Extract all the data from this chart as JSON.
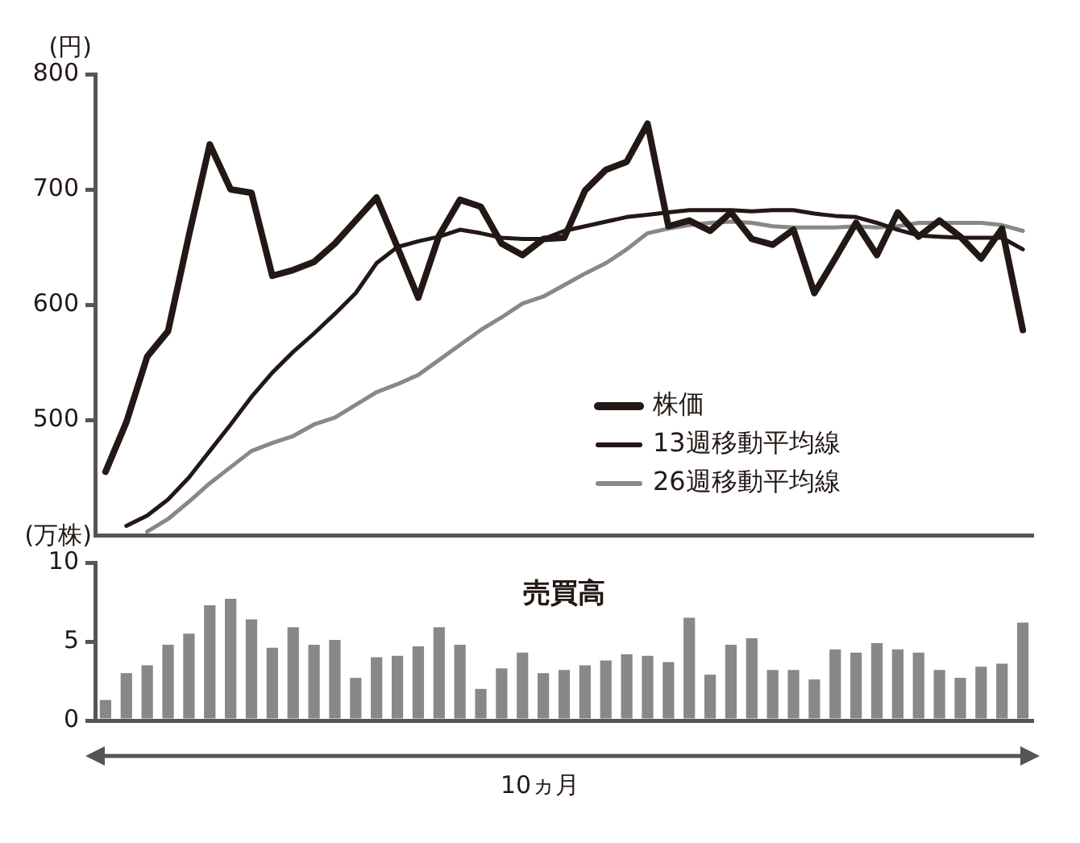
{
  "chart_data": [
    {
      "type": "line",
      "ylabel": "(円)",
      "categories": [
        null,
        null,
        null,
        null,
        null,
        null,
        null,
        null,
        null,
        null,
        null,
        null,
        null,
        null,
        null,
        null,
        null,
        null,
        null,
        null,
        null,
        null,
        null,
        null,
        null,
        null,
        null,
        null,
        null,
        null,
        null,
        null,
        null,
        null,
        null,
        null,
        null,
        null,
        null,
        null,
        null,
        null,
        null,
        null,
        null
      ],
      "series": [
        {
          "name": "株価",
          "color": "#231815",
          "values": [
            455,
            498,
            555,
            577,
            660,
            739,
            700,
            697,
            625,
            630,
            637,
            653,
            673,
            693,
            650,
            606,
            660,
            691,
            685,
            653,
            643,
            657,
            658,
            699,
            717,
            724,
            757,
            668,
            673,
            664,
            680,
            657,
            652,
            665,
            610,
            640,
            671,
            643,
            680,
            659,
            673,
            659,
            640,
            666,
            578
          ]
        },
        {
          "name": "13週移動平均線",
          "color": "#231815",
          "values": [
            null,
            408,
            417,
            431,
            450,
            473,
            496,
            520,
            541,
            559,
            575,
            592,
            610,
            636,
            650,
            655,
            659,
            665,
            662,
            658,
            657,
            657,
            664,
            668,
            672,
            676,
            678,
            680,
            682,
            682,
            682,
            681,
            682,
            682,
            679,
            677,
            676,
            671,
            665,
            660,
            659,
            658,
            658,
            658,
            648
          ]
        },
        {
          "name": "26週移動平均線",
          "color": "#888888",
          "values": [
            null,
            null,
            403,
            414,
            429,
            445,
            459,
            473,
            480,
            486,
            496,
            502,
            513,
            524,
            531,
            539,
            552,
            565,
            578,
            589,
            601,
            607,
            617,
            627,
            636,
            648,
            662,
            666,
            669,
            671,
            672,
            671,
            668,
            667,
            667,
            667,
            668,
            667,
            668,
            671,
            671,
            671,
            671,
            669,
            664
          ]
        }
      ],
      "ylim": [
        400,
        800
      ],
      "yticks": [
        500,
        600,
        700,
        800
      ],
      "legend": "bottom right",
      "tick_labels": "y",
      "marker": "none",
      "line_style": "solid"
    },
    {
      "type": "bar",
      "title": "売買高",
      "ylabel": "(万株)",
      "xlabel": "10ヵ月",
      "categories": [
        null,
        null,
        null,
        null,
        null,
        null,
        null,
        null,
        null,
        null,
        null,
        null,
        null,
        null,
        null,
        null,
        null,
        null,
        null,
        null,
        null,
        null,
        null,
        null,
        null,
        null,
        null,
        null,
        null,
        null,
        null,
        null,
        null,
        null,
        null,
        null,
        null,
        null,
        null,
        null,
        null,
        null,
        null,
        null,
        null
      ],
      "values": [
        1.3,
        3.0,
        3.5,
        4.8,
        5.5,
        7.3,
        7.7,
        6.4,
        4.6,
        5.9,
        4.8,
        5.1,
        2.7,
        4.0,
        4.1,
        4.7,
        5.9,
        4.8,
        2.0,
        3.3,
        4.3,
        3.0,
        3.2,
        3.5,
        3.8,
        4.2,
        4.1,
        3.7,
        6.5,
        2.9,
        4.8,
        5.2,
        3.2,
        3.2,
        2.6,
        4.5,
        4.3,
        4.9,
        4.5,
        4.3,
        3.2,
        2.7,
        3.4,
        3.6,
        6.2
      ],
      "color": "#888888",
      "ylim": [
        0,
        10
      ],
      "yticks": [
        0,
        5,
        10
      ],
      "tick_labels": "y"
    }
  ]
}
